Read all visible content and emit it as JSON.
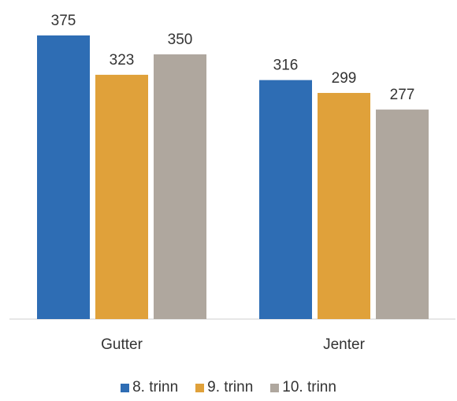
{
  "chart_data": {
    "type": "bar",
    "categories": [
      "Gutter",
      "Jenter"
    ],
    "series": [
      {
        "name": "8. trinn",
        "values": [
          375,
          316
        ],
        "color": "#2E6DB4"
      },
      {
        "name": "9. trinn",
        "values": [
          323,
          299
        ],
        "color": "#E0A13A"
      },
      {
        "name": "10. trinn",
        "values": [
          350,
          277
        ],
        "color": "#AFA79E"
      }
    ],
    "title": "",
    "xlabel": "",
    "ylabel": "",
    "ylim": [
      0,
      375
    ],
    "grid": false,
    "legend_position": "bottom"
  }
}
